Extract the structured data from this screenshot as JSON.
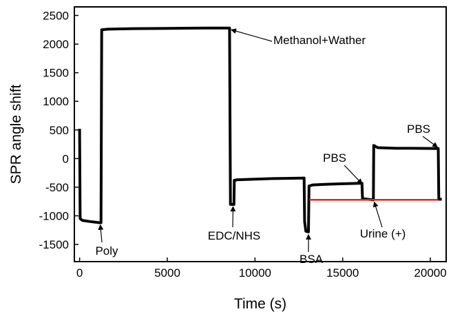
{
  "chart_data": {
    "type": "line",
    "title": "",
    "xlabel": "Time (s)",
    "ylabel": "SPR angle shift",
    "xlim": [
      -300,
      20900
    ],
    "ylim": [
      -1800,
      2650
    ],
    "x_ticks": [
      0,
      5000,
      10000,
      15000,
      20000
    ],
    "x_tick_labels": [
      "0",
      "5000",
      "10000",
      "15000",
      "20000"
    ],
    "y_ticks": [
      2500,
      2000,
      1500,
      1000,
      500,
      0,
      -500,
      -1000,
      -1500
    ],
    "y_tick_labels": [
      "2500",
      "2000",
      "1500",
      "1000",
      "500",
      "0",
      "-500",
      "-1000",
      "-1500"
    ],
    "grid": false,
    "series": [
      {
        "color": "#000000",
        "points": [
          [
            0,
            520
          ],
          [
            30,
            -1050
          ],
          [
            150,
            -1080
          ],
          [
            600,
            -1100
          ],
          [
            1150,
            -1120
          ],
          [
            1220,
            -1120
          ],
          [
            1260,
            2250
          ],
          [
            1600,
            2260
          ],
          [
            3000,
            2270
          ],
          [
            5000,
            2275
          ],
          [
            7000,
            2280
          ],
          [
            8550,
            2280
          ],
          [
            8600,
            -800
          ],
          [
            8800,
            -800
          ],
          [
            8820,
            -380
          ],
          [
            9000,
            -370
          ],
          [
            10000,
            -360
          ],
          [
            11000,
            -350
          ],
          [
            12000,
            -345
          ],
          [
            12800,
            -340
          ],
          [
            12830,
            -1100
          ],
          [
            12900,
            -1270
          ],
          [
            13050,
            -1280
          ],
          [
            13080,
            -480
          ],
          [
            13300,
            -460
          ],
          [
            14000,
            -450
          ],
          [
            15000,
            -440
          ],
          [
            16100,
            -430
          ],
          [
            16130,
            -700
          ],
          [
            16700,
            -720
          ],
          [
            16750,
            -720
          ],
          [
            16770,
            230
          ],
          [
            17000,
            190
          ],
          [
            18000,
            180
          ],
          [
            19000,
            180
          ],
          [
            20450,
            175
          ],
          [
            20480,
            -710
          ],
          [
            20650,
            -710
          ]
        ]
      },
      {
        "color": "#e8201f",
        "points": [
          [
            13100,
            -720
          ],
          [
            20450,
            -720
          ]
        ]
      }
    ],
    "annotations": [
      {
        "text": "Methanol+Wather",
        "point": [
          8650,
          2250
        ]
      },
      {
        "text": "Poly",
        "point": [
          1180,
          -1160
        ]
      },
      {
        "text": "EDC/NHS",
        "point": [
          8750,
          -840
        ]
      },
      {
        "text": "BSA",
        "point": [
          13050,
          -1330
        ]
      },
      {
        "text": "PBS",
        "point": [
          16100,
          -440
        ]
      },
      {
        "text": "Urine (+)",
        "point": [
          16800,
          -760
        ]
      },
      {
        "text": "PBS",
        "point": [
          20400,
          200
        ]
      }
    ]
  }
}
